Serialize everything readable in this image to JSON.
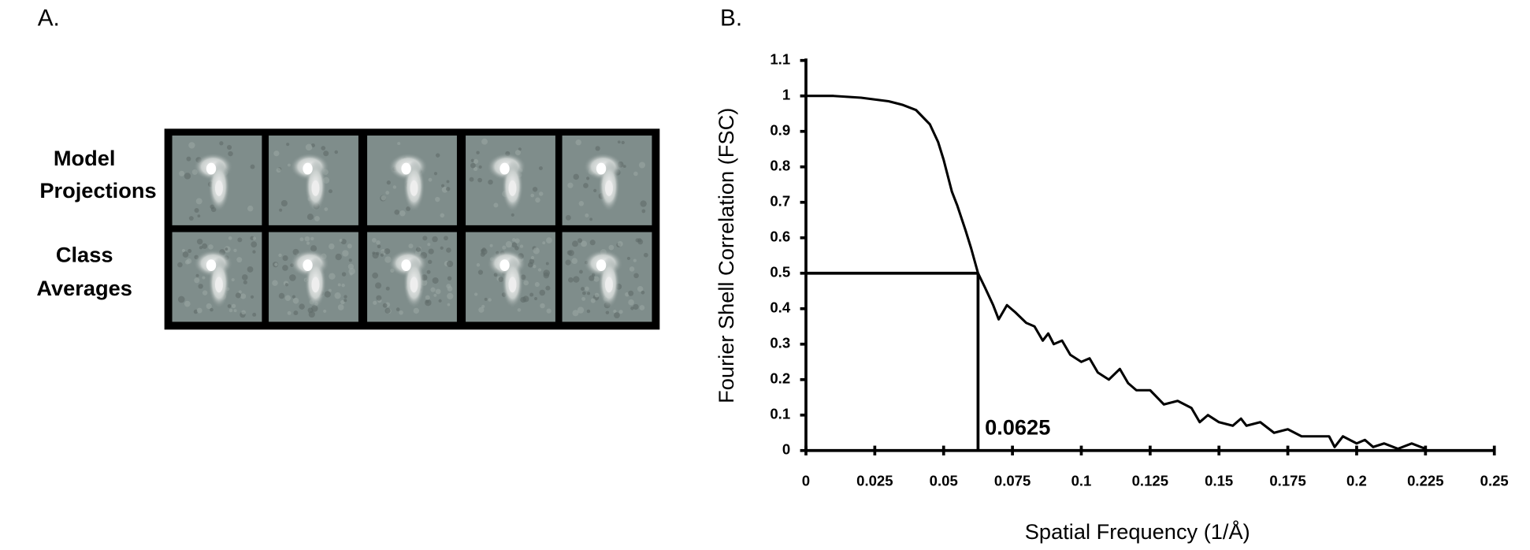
{
  "panel_labels": [
    "A.",
    "B."
  ],
  "panel_a": {
    "row_labels": [
      [
        "Model",
        "Projections"
      ],
      [
        "Class",
        "Averages"
      ]
    ]
  },
  "chart_data": {
    "type": "line",
    "x_label": "Spatial Frequency (1/Å)",
    "y_label": "Fourier Shell Correlation (FSC)",
    "x": [
      0,
      0.01,
      0.02,
      0.03,
      0.035,
      0.04,
      0.045,
      0.048,
      0.05,
      0.053,
      0.055,
      0.058,
      0.06,
      0.0625,
      0.065,
      0.068,
      0.07,
      0.073,
      0.076,
      0.08,
      0.083,
      0.086,
      0.088,
      0.09,
      0.093,
      0.096,
      0.1,
      0.103,
      0.106,
      0.11,
      0.114,
      0.117,
      0.12,
      0.125,
      0.13,
      0.135,
      0.14,
      0.143,
      0.146,
      0.15,
      0.155,
      0.158,
      0.16,
      0.165,
      0.17,
      0.175,
      0.18,
      0.185,
      0.19,
      0.192,
      0.195,
      0.2,
      0.203,
      0.206,
      0.21,
      0.215,
      0.22,
      0.225
    ],
    "series": [
      {
        "color": "#000000",
        "values": [
          1.0,
          1.0,
          0.995,
          0.985,
          0.975,
          0.96,
          0.92,
          0.87,
          0.82,
          0.73,
          0.69,
          0.62,
          0.57,
          0.5,
          0.46,
          0.41,
          0.37,
          0.41,
          0.39,
          0.36,
          0.35,
          0.31,
          0.33,
          0.3,
          0.31,
          0.27,
          0.25,
          0.26,
          0.22,
          0.2,
          0.23,
          0.19,
          0.17,
          0.17,
          0.13,
          0.14,
          0.12,
          0.08,
          0.1,
          0.08,
          0.07,
          0.09,
          0.07,
          0.08,
          0.05,
          0.06,
          0.04,
          0.04,
          0.04,
          0.01,
          0.04,
          0.02,
          0.03,
          0.01,
          0.02,
          0.005,
          0.02,
          0.005
        ]
      }
    ],
    "threshold": {
      "x": 0.0625,
      "y": 0.5
    },
    "xlim": [
      0,
      0.25
    ],
    "xticks": [
      0,
      0.025,
      0.05,
      0.075,
      0.1,
      0.125,
      0.15,
      0.175,
      0.2,
      0.225,
      0.25
    ],
    "ylim": [
      0,
      1.1
    ],
    "yticks": [
      0,
      0.1,
      0.2,
      0.3,
      0.4,
      0.5,
      0.6,
      0.7,
      0.8,
      0.9,
      1,
      1.1
    ]
  }
}
